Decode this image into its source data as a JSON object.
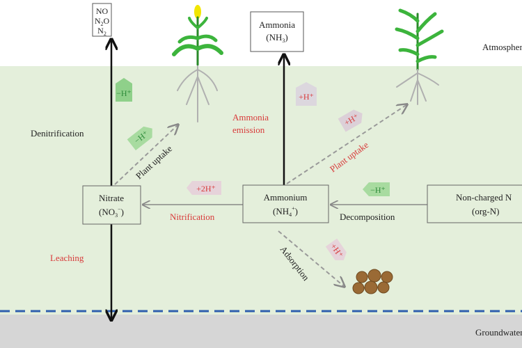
{
  "colors": {
    "soil": "#e4efdb",
    "groundwater": "#d6d6d6",
    "water_line": "#2f5fae",
    "process_red": "#d83a3a",
    "tag_green": "#8fd08a",
    "tag_pink": "#e6c8d0"
  },
  "zones": {
    "atmosphere": "Atmosphere",
    "groundwater": "Groundwater"
  },
  "boxes": {
    "gases": {
      "line1": "NO",
      "line2_main": "N",
      "line2_sub": "2",
      "line2_tail": "O",
      "line3_main": "N",
      "line3_sub": "2"
    },
    "ammonia": {
      "name": "Ammonia",
      "formula_open": "(NH",
      "formula_sub": "3",
      "formula_close": ")"
    },
    "nitrate": {
      "name": "Nitrate",
      "formula_open": "(NO",
      "formula_sub": "3",
      "formula_sup": "−",
      "formula_close": ")"
    },
    "ammonium": {
      "name": "Ammonium",
      "formula_open": "(NH",
      "formula_sub": "4",
      "formula_sup": "+",
      "formula_close": ")"
    },
    "organic": {
      "name": "Non-charged N",
      "formula": "(org-N)"
    }
  },
  "processes": {
    "denitrification": "Denitrification",
    "leaching": "Leaching",
    "plant_uptake_nitrate": "Plant uptake",
    "ammonia_emission_1": "Ammonia",
    "ammonia_emission_2": "emission",
    "plant_uptake_ammonium": "Plant uptake",
    "nitrification": "Nitrification",
    "decomposition": "Decomposition",
    "adsorption": "Adsorption"
  },
  "proton_tags": {
    "denitrification": "−H⁺",
    "nitrate_uptake": "−H⁺",
    "ammonia_emission": "+H⁺",
    "ammonium_uptake": "+H⁺",
    "nitrification": "+2H⁺",
    "decomposition": "−H⁺",
    "adsorption": "+H⁺"
  }
}
